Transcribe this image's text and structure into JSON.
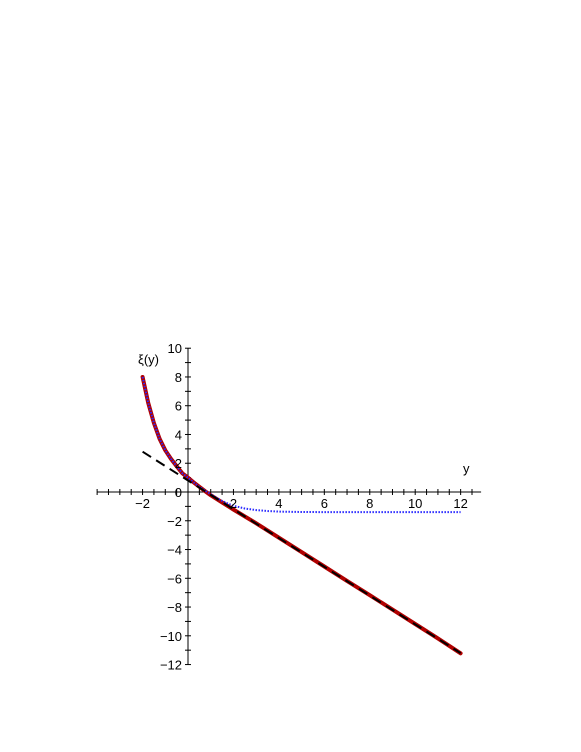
{
  "chart_data": {
    "type": "line",
    "xlabel": "y",
    "ylabel": "ξ(y)",
    "xlim": [
      -4,
      13
    ],
    "ylim": [
      -12,
      10
    ],
    "x_ticks": [
      -2,
      2,
      4,
      6,
      8,
      10,
      12
    ],
    "x_tick_labels": [
      "−2",
      "2",
      "4",
      "6",
      "8",
      "10",
      "12"
    ],
    "y_ticks": [
      -12,
      -10,
      -8,
      -6,
      -4,
      -2,
      0,
      2,
      4,
      6,
      8,
      10
    ],
    "y_tick_labels": [
      "−12",
      "−10",
      "−8",
      "−6",
      "−4",
      "−2",
      "0",
      "2",
      "4",
      "6",
      "8",
      "10"
    ],
    "grid": false,
    "series": [
      {
        "style": "solid-thick",
        "color": "#b00000",
        "x": [
          -2,
          -1.75,
          -1.5,
          -1.25,
          -1,
          -0.75,
          -0.5,
          -0.25,
          0,
          0.25,
          0.5,
          0.75,
          1,
          1.5,
          2,
          2.5,
          3,
          4,
          5,
          6,
          7,
          8,
          9,
          10,
          11,
          12
        ],
        "y": [
          8,
          6.2,
          4.8,
          3.7,
          2.9,
          2.3,
          1.8,
          1.3,
          1,
          0.67,
          0.36,
          0.06,
          -0.22,
          -0.72,
          -1.22,
          -1.7,
          -2.18,
          -3.18,
          -4.18,
          -5.18,
          -6.18,
          -7.18,
          -8.18,
          -9.18,
          -10.18,
          -11.22
        ]
      },
      {
        "style": "dotted",
        "color": "#2a2aff",
        "x": [
          -2,
          -1.75,
          -1.5,
          -1.25,
          -1,
          -0.75,
          -0.5,
          -0.25,
          0,
          0.25,
          0.5,
          0.75,
          1,
          1.25,
          1.5,
          1.75,
          2,
          2.5,
          3,
          3.5,
          4,
          5,
          6,
          7,
          8,
          9,
          10,
          11,
          12
        ],
        "y": [
          8,
          6.2,
          4.8,
          3.7,
          2.9,
          2.3,
          1.8,
          1.3,
          1,
          0.67,
          0.36,
          0.1,
          -0.15,
          -0.4,
          -0.62,
          -0.8,
          -0.95,
          -1.15,
          -1.26,
          -1.32,
          -1.36,
          -1.39,
          -1.4,
          -1.4,
          -1.4,
          -1.4,
          -1.4,
          -1.4,
          -1.4
        ]
      },
      {
        "style": "dashed",
        "color": "#000000",
        "x": [
          -2,
          12
        ],
        "y": [
          2.8,
          -11.2
        ]
      }
    ]
  }
}
